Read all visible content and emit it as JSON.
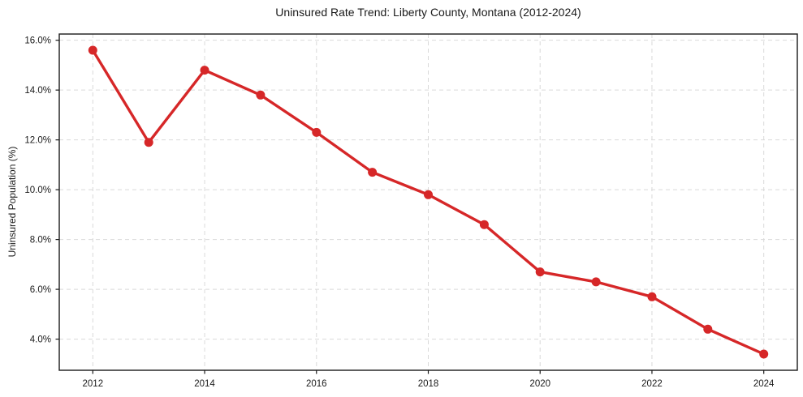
{
  "window": {
    "background": "#ffffff"
  },
  "chart": {
    "title": "Uninsured Rate Trend: Liberty County, Montana (2012-2024)",
    "y_axis_label": "Uninsured Population (%)"
  },
  "chart_data": {
    "type": "line",
    "title": "Uninsured Rate Trend: Liberty County, Montana (2012-2024)",
    "xlabel": "",
    "ylabel": "Uninsured Population (%)",
    "x": [
      2012,
      2013,
      2014,
      2015,
      2016,
      2017,
      2018,
      2019,
      2020,
      2021,
      2022,
      2023,
      2024
    ],
    "series": [
      {
        "name": "Uninsured Rate",
        "values": [
          15.6,
          11.9,
          14.8,
          13.8,
          12.3,
          10.7,
          9.8,
          8.6,
          6.7,
          6.3,
          5.7,
          4.4,
          3.4
        ],
        "color": "#d62728",
        "marker": "circle"
      }
    ],
    "x_ticks": [
      2012,
      2014,
      2016,
      2018,
      2020,
      2022,
      2024
    ],
    "x_tick_labels": [
      "2012",
      "2014",
      "2016",
      "2018",
      "2020",
      "2022",
      "2024"
    ],
    "y_ticks": [
      4,
      6,
      8,
      10,
      12,
      14,
      16
    ],
    "y_tick_labels": [
      "4.0%",
      "6.0%",
      "8.0%",
      "10.0%",
      "12.0%",
      "14.0%",
      "16.0%"
    ],
    "xlim": [
      2011.4,
      2024.6
    ],
    "ylim": [
      2.75,
      16.25
    ],
    "grid": true,
    "grid_style": "dashed",
    "legend": "none",
    "colors": {
      "line": "#d62728",
      "grid": "#d9d9d9",
      "spine": "#1a1a1a",
      "text": "#1a1a1a",
      "background": "#ffffff"
    }
  }
}
